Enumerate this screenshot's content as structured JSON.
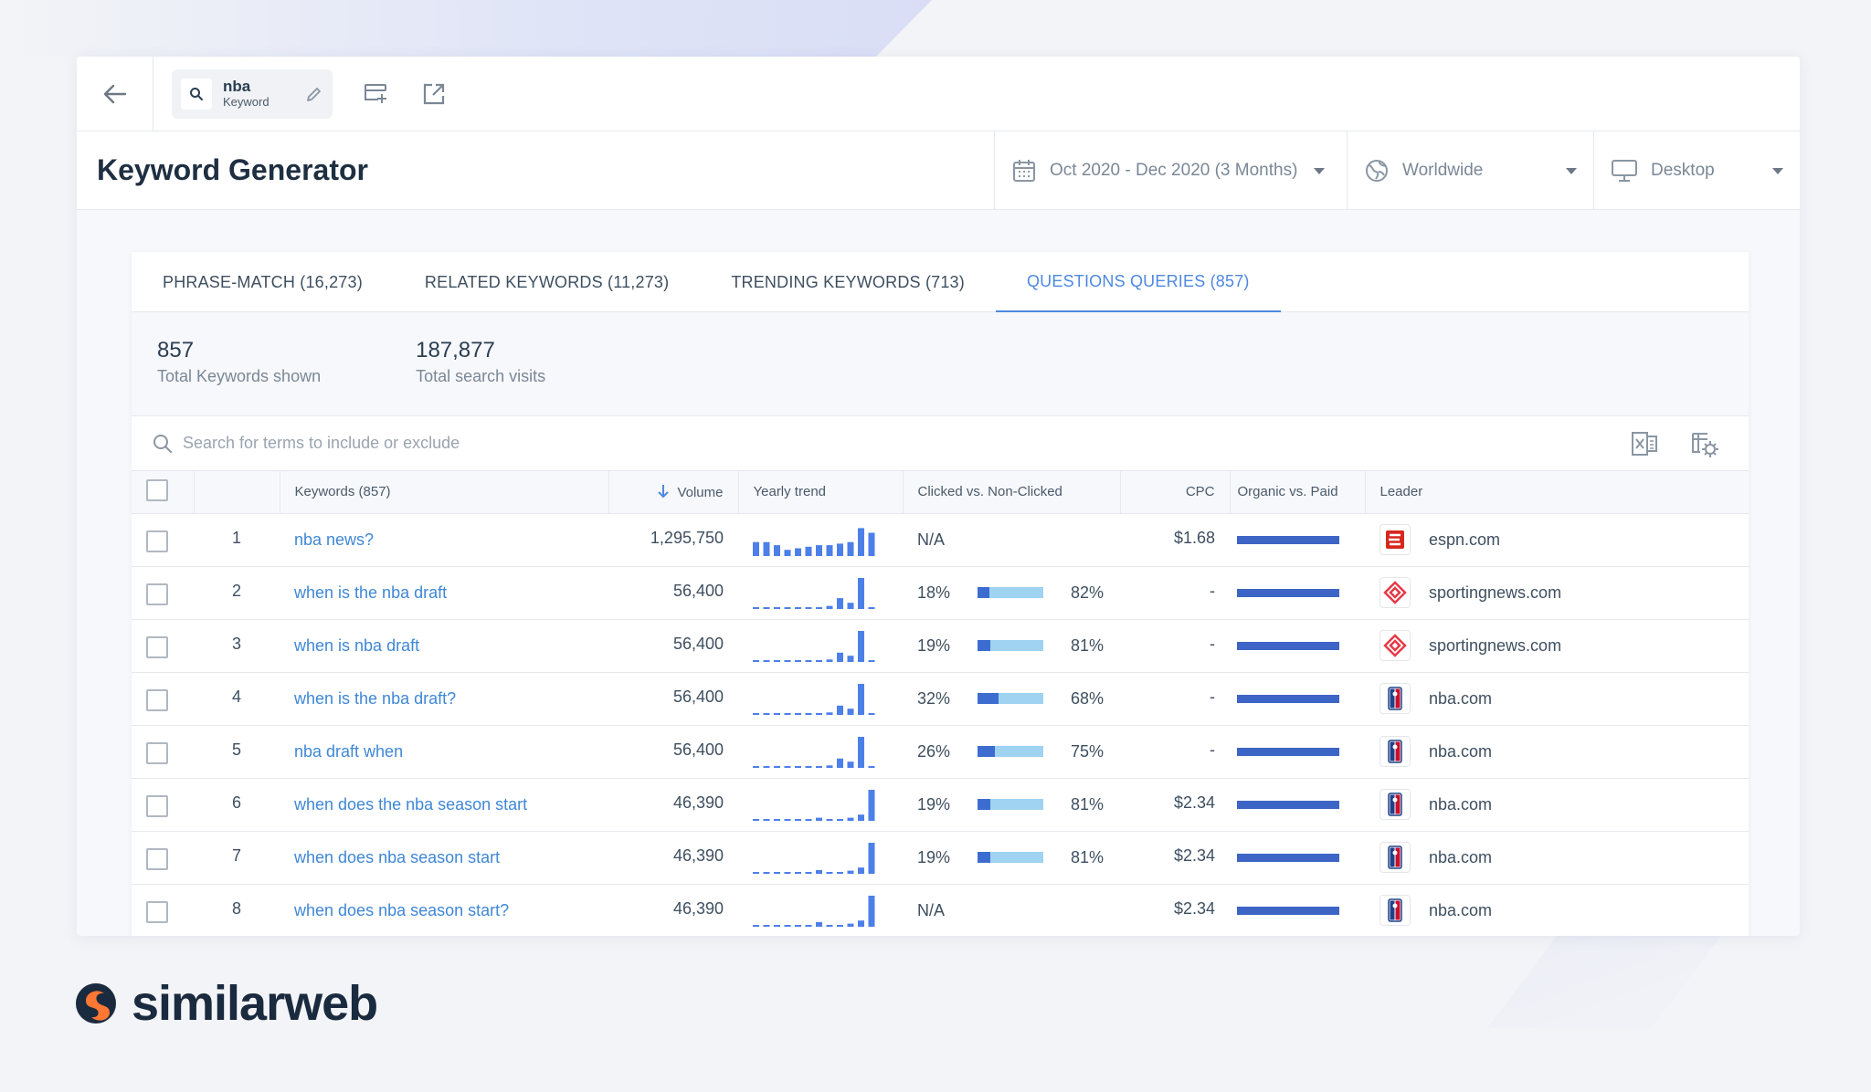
{
  "search_chip": {
    "keyword": "nba",
    "type": "Keyword"
  },
  "header": {
    "title": "Keyword Generator",
    "date_range": "Oct 2020 - Dec 2020 (3 Months)",
    "country": "Worldwide",
    "device": "Desktop"
  },
  "tabs": [
    {
      "label": "PHRASE-MATCH (16,273)"
    },
    {
      "label": "RELATED KEYWORDS (11,273)"
    },
    {
      "label": "TRENDING KEYWORDS (713)"
    },
    {
      "label": "QUESTIONS QUERIES (857)",
      "active": true
    }
  ],
  "stats": {
    "total_keywords": {
      "value": "857",
      "label": "Total Keywords shown"
    },
    "total_visits": {
      "value": "187,877",
      "label": "Total search visits"
    }
  },
  "search": {
    "placeholder": "Search for terms to include or exclude"
  },
  "columns": {
    "keywords": "Keywords (857)",
    "volume": "Volume",
    "trend": "Yearly trend",
    "clicked": "Clicked vs. Non-Clicked",
    "cpc": "CPC",
    "organic": "Organic vs. Paid",
    "leader": "Leader"
  },
  "colors": {
    "accent": "#4d88e0",
    "link": "#3f87d6",
    "bar_dark": "#3d6cd1",
    "bar_light": "#9fd3f1",
    "organic": "#3d65c6"
  },
  "rows": [
    {
      "rank": "1",
      "keyword": "nba news?",
      "volume": "1,295,750",
      "clicked": "N/A",
      "non_clicked": "",
      "clicked_fraction": null,
      "cpc": "$1.68",
      "organic_fraction": 1.0,
      "leader": "espn.com",
      "leader_icon": "espn-icon",
      "trend": [
        0.45,
        0.45,
        0.35,
        0.2,
        0.25,
        0.3,
        0.35,
        0.35,
        0.4,
        0.45,
        0.9,
        0.75
      ]
    },
    {
      "rank": "2",
      "keyword": "when is the nba draft",
      "volume": "56,400",
      "clicked": "18%",
      "non_clicked": "82%",
      "clicked_fraction": 0.18,
      "cpc": "-",
      "organic_fraction": 1.0,
      "leader": "sportingnews.com",
      "leader_icon": "sportingnews-icon",
      "trend": [
        0.02,
        0.02,
        0.02,
        0.02,
        0.02,
        0.03,
        0.03,
        0.1,
        0.35,
        0.2,
        1.0,
        0.05
      ]
    },
    {
      "rank": "3",
      "keyword": "when is nba draft",
      "volume": "56,400",
      "clicked": "19%",
      "non_clicked": "81%",
      "clicked_fraction": 0.19,
      "cpc": "-",
      "organic_fraction": 1.0,
      "leader": "sportingnews.com",
      "leader_icon": "sportingnews-icon",
      "trend": [
        0.02,
        0.02,
        0.02,
        0.02,
        0.02,
        0.03,
        0.05,
        0.08,
        0.3,
        0.2,
        1.0,
        0.05
      ]
    },
    {
      "rank": "4",
      "keyword": "when is the nba draft?",
      "volume": "56,400",
      "clicked": "32%",
      "non_clicked": "68%",
      "clicked_fraction": 0.32,
      "cpc": "-",
      "organic_fraction": 1.0,
      "leader": "nba.com",
      "leader_icon": "nba-icon",
      "trend": [
        0.02,
        0.02,
        0.02,
        0.02,
        0.02,
        0.03,
        0.05,
        0.08,
        0.3,
        0.2,
        1.0,
        0.05
      ]
    },
    {
      "rank": "5",
      "keyword": "nba draft when",
      "volume": "56,400",
      "clicked": "26%",
      "non_clicked": "75%",
      "clicked_fraction": 0.26,
      "cpc": "-",
      "organic_fraction": 1.0,
      "leader": "nba.com",
      "leader_icon": "nba-icon",
      "trend": [
        0.02,
        0.02,
        0.02,
        0.02,
        0.02,
        0.03,
        0.05,
        0.08,
        0.3,
        0.2,
        1.0,
        0.05
      ]
    },
    {
      "rank": "6",
      "keyword": "when does the nba season start",
      "volume": "46,390",
      "clicked": "19%",
      "non_clicked": "81%",
      "clicked_fraction": 0.19,
      "cpc": "$2.34",
      "organic_fraction": 1.0,
      "leader": "nba.com",
      "leader_icon": "nba-icon",
      "trend": [
        0.02,
        0.02,
        0.02,
        0.02,
        0.02,
        0.03,
        0.1,
        0.02,
        0.02,
        0.1,
        0.2,
        1.0
      ]
    },
    {
      "rank": "7",
      "keyword": "when does nba season start",
      "volume": "46,390",
      "clicked": "19%",
      "non_clicked": "81%",
      "clicked_fraction": 0.19,
      "cpc": "$2.34",
      "organic_fraction": 1.0,
      "leader": "nba.com",
      "leader_icon": "nba-icon",
      "trend": [
        0.02,
        0.02,
        0.02,
        0.02,
        0.02,
        0.03,
        0.12,
        0.02,
        0.02,
        0.1,
        0.2,
        1.0
      ]
    },
    {
      "rank": "8",
      "keyword": "when does nba season start?",
      "volume": "46,390",
      "clicked": "N/A",
      "non_clicked": "",
      "clicked_fraction": null,
      "cpc": "$2.34",
      "organic_fraction": 1.0,
      "leader": "nba.com",
      "leader_icon": "nba-icon",
      "trend": [
        0.02,
        0.02,
        0.02,
        0.02,
        0.02,
        0.03,
        0.15,
        0.02,
        0.02,
        0.1,
        0.2,
        1.0
      ]
    }
  ],
  "brand": {
    "name": "similarweb"
  }
}
